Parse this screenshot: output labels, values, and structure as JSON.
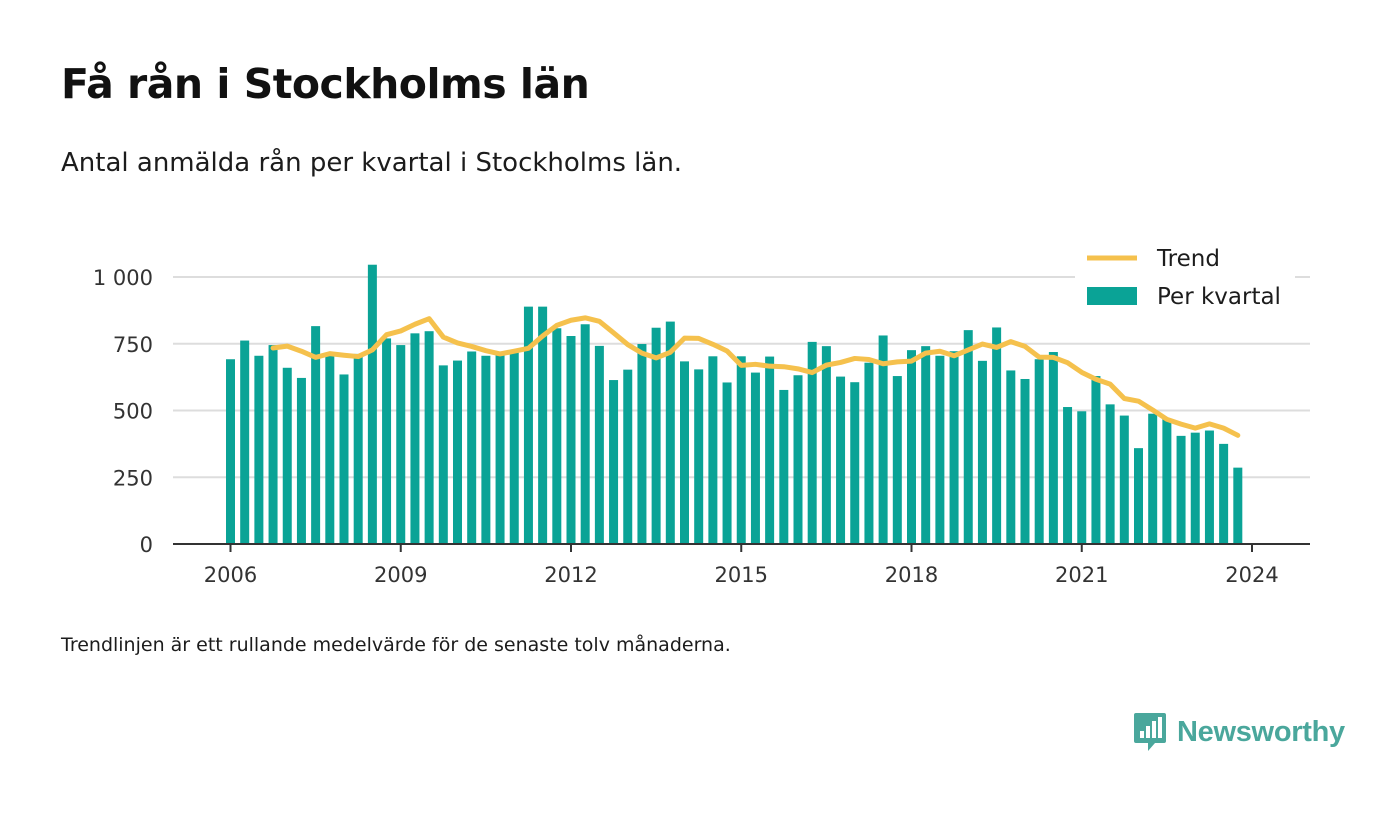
{
  "title": "Få rån i Stockholms län",
  "subtitle": "Antal anmälda rån per kvartal i Stockholms län.",
  "footnote": "Trendlinjen är ett rullande medelvärde för de senaste tolv månaderna.",
  "brand": {
    "name": "Newsworthy",
    "icon": "newsworthy-logo-icon"
  },
  "colors": {
    "bars": "#0aa396",
    "trend": "#f5c14d",
    "grid": "#dddddd",
    "axis": "#333333"
  },
  "chart_data": {
    "type": "bar",
    "title": "Få rån i Stockholms län",
    "subtitle": "Antal anmälda rån per kvartal i Stockholms län.",
    "xlabel": "",
    "ylabel": "",
    "ylim": [
      0,
      1000
    ],
    "y_ticks": [
      0,
      250,
      500,
      750,
      1000
    ],
    "y_tick_labels": [
      "0",
      "250",
      "500",
      "750",
      "1 000"
    ],
    "x_ticks": [
      2006,
      2009,
      2012,
      2015,
      2018,
      2021,
      2024
    ],
    "x_tick_labels": [
      "2006",
      "2009",
      "2012",
      "2015",
      "2018",
      "2021",
      "2024"
    ],
    "grid": true,
    "legend": {
      "position": "top-right",
      "entries": [
        "Trend",
        "Per kvartal"
      ]
    },
    "quarters_start": {
      "year": 2006,
      "quarter": 1
    },
    "series": [
      {
        "name": "Per kvartal",
        "type": "bar",
        "values": [
          692,
          762,
          705,
          745,
          660,
          622,
          816,
          705,
          635,
          712,
          1046,
          770,
          745,
          789,
          797,
          669,
          687,
          721,
          705,
          711,
          722,
          889,
          889,
          808,
          779,
          823,
          742,
          614,
          653,
          749,
          810,
          833,
          684,
          654,
          703,
          605,
          703,
          642,
          702,
          577,
          632,
          757,
          741,
          627,
          606,
          679,
          781,
          629,
          726,
          741,
          705,
          722,
          801,
          686,
          811,
          650,
          618,
          692,
          719,
          513,
          497,
          629,
          523,
          481,
          359,
          488,
          469,
          405,
          417,
          425,
          375,
          286
        ]
      },
      {
        "name": "Trend",
        "type": "line",
        "values": [
          null,
          null,
          null,
          734,
          741,
          722,
          699,
          713,
          707,
          702,
          727,
          784,
          798,
          823,
          844,
          775,
          753,
          740,
          724,
          712,
          722,
          733,
          779,
          819,
          838,
          847,
          834,
          791,
          747,
          715,
          697,
          718,
          771,
          770,
          748,
          723,
          669,
          673,
          666,
          664,
          656,
          642,
          670,
          680,
          695,
          691,
          675,
          682,
          685,
          715,
          722,
          705,
          727,
          749,
          736,
          758,
          740,
          700,
          699,
          679,
          643,
          617,
          599,
          545,
          535,
          502,
          467,
          449,
          434,
          450,
          434,
          407
        ]
      }
    ]
  }
}
